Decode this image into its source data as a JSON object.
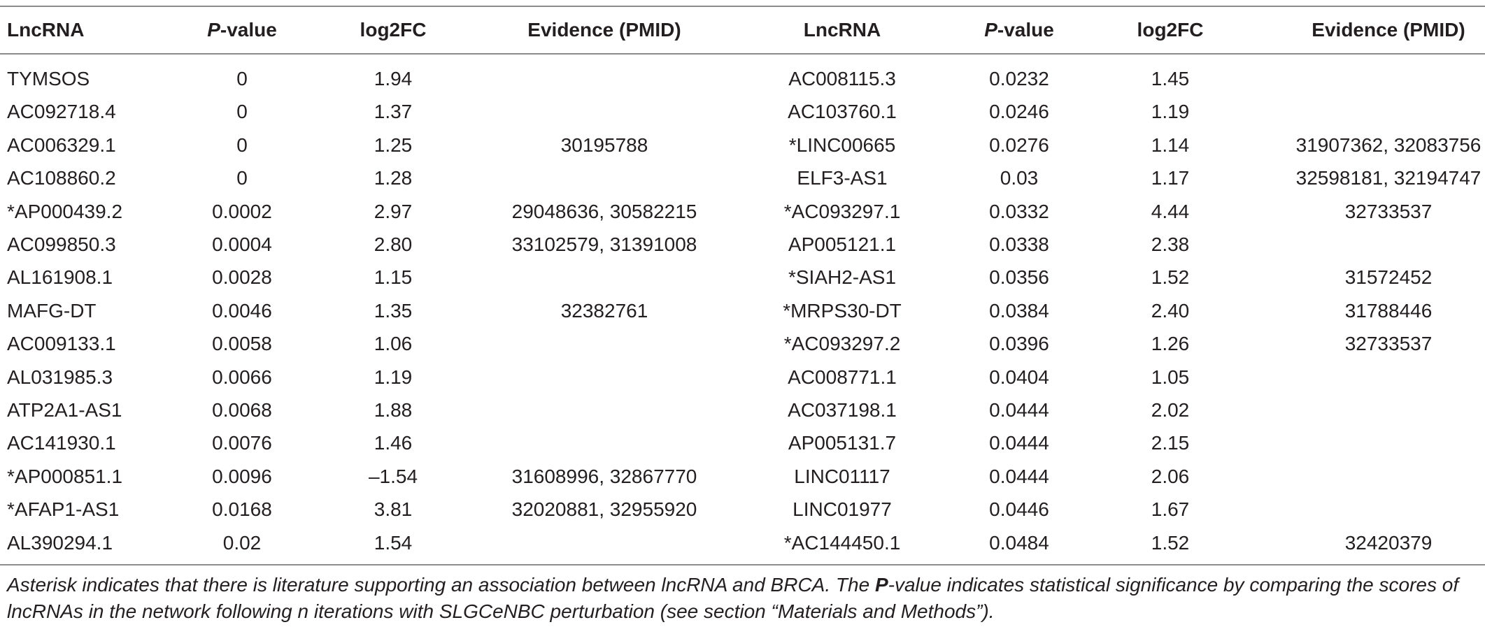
{
  "headers": {
    "lncrna_1": "LncRNA",
    "pvalue_prefix_1": "P",
    "pvalue_suffix_1": "-value",
    "log2fc_1": "log2FC",
    "evidence_1": "Evidence (PMID)",
    "lncrna_2": "LncRNA",
    "pvalue_prefix_2": "P",
    "pvalue_suffix_2": "-value",
    "log2fc_2": "log2FC",
    "evidence_2": "Evidence (PMID)"
  },
  "rows": [
    {
      "l1": "TYMSOS",
      "p1": "0",
      "f1": "1.94",
      "e1": "",
      "l2": "AC008115.3",
      "p2": "0.0232",
      "f2": "1.45",
      "e2": ""
    },
    {
      "l1": "AC092718.4",
      "p1": "0",
      "f1": "1.37",
      "e1": "",
      "l2": "AC103760.1",
      "p2": "0.0246",
      "f2": "1.19",
      "e2": ""
    },
    {
      "l1": "AC006329.1",
      "p1": "0",
      "f1": "1.25",
      "e1": "30195788",
      "l2": "*LINC00665",
      "p2": "0.0276",
      "f2": "1.14",
      "e2": "31907362, 32083756"
    },
    {
      "l1": "AC108860.2",
      "p1": "0",
      "f1": "1.28",
      "e1": "",
      "l2": "ELF3-AS1",
      "p2": "0.03",
      "f2": "1.17",
      "e2": "32598181, 32194747"
    },
    {
      "l1": "*AP000439.2",
      "p1": "0.0002",
      "f1": "2.97",
      "e1": "29048636, 30582215",
      "l2": "*AC093297.1",
      "p2": "0.0332",
      "f2": "4.44",
      "e2": "32733537"
    },
    {
      "l1": "AC099850.3",
      "p1": "0.0004",
      "f1": "2.80",
      "e1": "33102579, 31391008",
      "l2": "AP005121.1",
      "p2": "0.0338",
      "f2": "2.38",
      "e2": ""
    },
    {
      "l1": "AL161908.1",
      "p1": "0.0028",
      "f1": "1.15",
      "e1": "",
      "l2": "*SIAH2-AS1",
      "p2": "0.0356",
      "f2": "1.52",
      "e2": "31572452"
    },
    {
      "l1": "MAFG-DT",
      "p1": "0.0046",
      "f1": "1.35",
      "e1": "32382761",
      "l2": "*MRPS30-DT",
      "p2": "0.0384",
      "f2": "2.40",
      "e2": "31788446"
    },
    {
      "l1": "AC009133.1",
      "p1": "0.0058",
      "f1": "1.06",
      "e1": "",
      "l2": "*AC093297.2",
      "p2": "0.0396",
      "f2": "1.26",
      "e2": "32733537"
    },
    {
      "l1": "AL031985.3",
      "p1": "0.0066",
      "f1": "1.19",
      "e1": "",
      "l2": "AC008771.1",
      "p2": "0.0404",
      "f2": "1.05",
      "e2": ""
    },
    {
      "l1": "ATP2A1-AS1",
      "p1": "0.0068",
      "f1": "1.88",
      "e1": "",
      "l2": "AC037198.1",
      "p2": "0.0444",
      "f2": "2.02",
      "e2": ""
    },
    {
      "l1": "AC141930.1",
      "p1": "0.0076",
      "f1": "1.46",
      "e1": "",
      "l2": "AP005131.7",
      "p2": "0.0444",
      "f2": "2.15",
      "e2": ""
    },
    {
      "l1": "*AP000851.1",
      "p1": "0.0096",
      "f1": "–1.54",
      "e1": "31608996, 32867770",
      "l2": "LINC01117",
      "p2": "0.0444",
      "f2": "2.06",
      "e2": ""
    },
    {
      "l1": "*AFAP1-AS1",
      "p1": "0.0168",
      "f1": "3.81",
      "e1": "32020881, 32955920",
      "l2": "LINC01977",
      "p2": "0.0446",
      "f2": "1.67",
      "e2": ""
    },
    {
      "l1": "AL390294.1",
      "p1": "0.02",
      "f1": "1.54",
      "e1": "",
      "l2": "*AC144450.1",
      "p2": "0.0484",
      "f2": "1.52",
      "e2": "32420379"
    }
  ],
  "caption": {
    "part1": "Asterisk indicates that there is literature supporting an association between lncRNA and BRCA. The ",
    "bold_p": "P",
    "part2": "-value indicates statistical significance by comparing the scores of lncRNAs in the network following n iterations with SLGCeNBC perturbation (see section “Materials and Methods”)."
  }
}
